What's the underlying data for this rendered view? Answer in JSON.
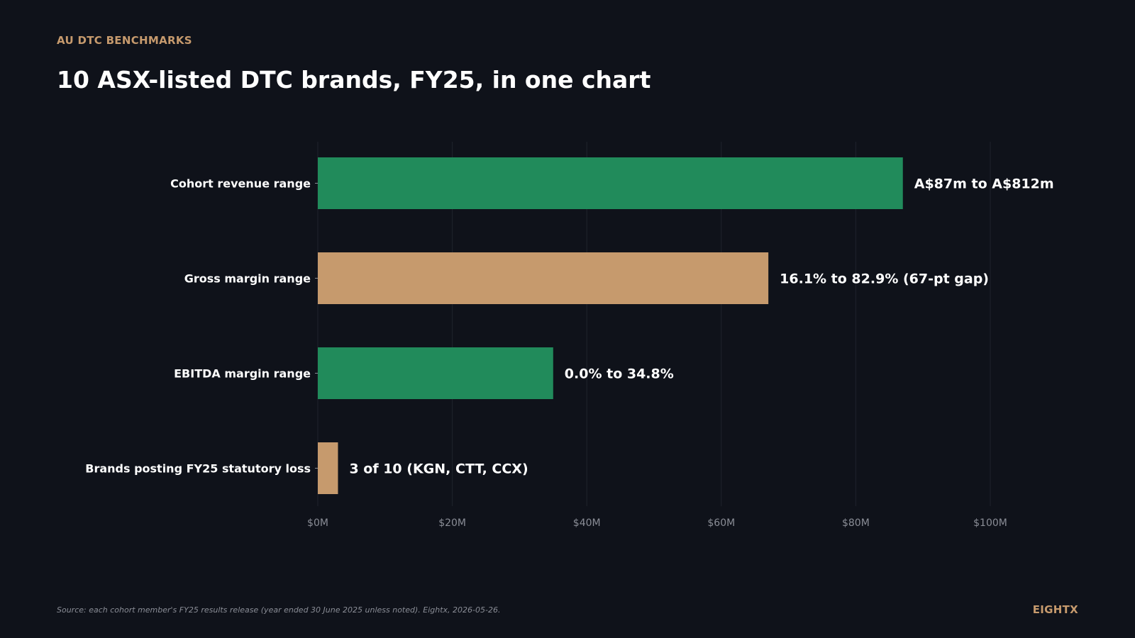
{
  "header": {
    "eyebrow": "AU DTC BENCHMARKS",
    "title": "10 ASX-listed DTC brands, FY25, in one chart"
  },
  "footer": {
    "source": "Source: each cohort member's FY25 results release (year ended 30 June 2025 unless noted). Eightx, 2026-05-26.",
    "brand": "EIGHTX"
  },
  "colors": {
    "background": "#0f121a",
    "accent": "#c69a6d",
    "green": "#218b5b",
    "tan": "#c69a6d",
    "text": "#ffffff",
    "muted": "#8a8d96",
    "grid": "#1f232c"
  },
  "chart_data": {
    "type": "bar",
    "orientation": "horizontal",
    "categories": [
      "Cohort revenue range",
      "Gross margin range",
      "EBITDA margin range",
      "Brands posting FY25 statutory loss"
    ],
    "values": [
      87,
      67,
      35,
      3
    ],
    "bar_colors": [
      "#218b5b",
      "#c69a6d",
      "#218b5b",
      "#c69a6d"
    ],
    "data_labels": [
      "A$87m to A$812m",
      "16.1% to 82.9% (67-pt gap)",
      "0.0% to 34.8%",
      "3 of 10 (KGN, CTT, CCX)"
    ],
    "x_ticks": [
      0,
      20,
      40,
      60,
      80,
      100
    ],
    "x_tick_labels": [
      "$0M",
      "$20M",
      "$40M",
      "$60M",
      "$80M",
      "$100M"
    ],
    "xlim": [
      0,
      100
    ],
    "grid": true,
    "legend": false,
    "title": "10 ASX-listed DTC brands, FY25, in one chart"
  }
}
